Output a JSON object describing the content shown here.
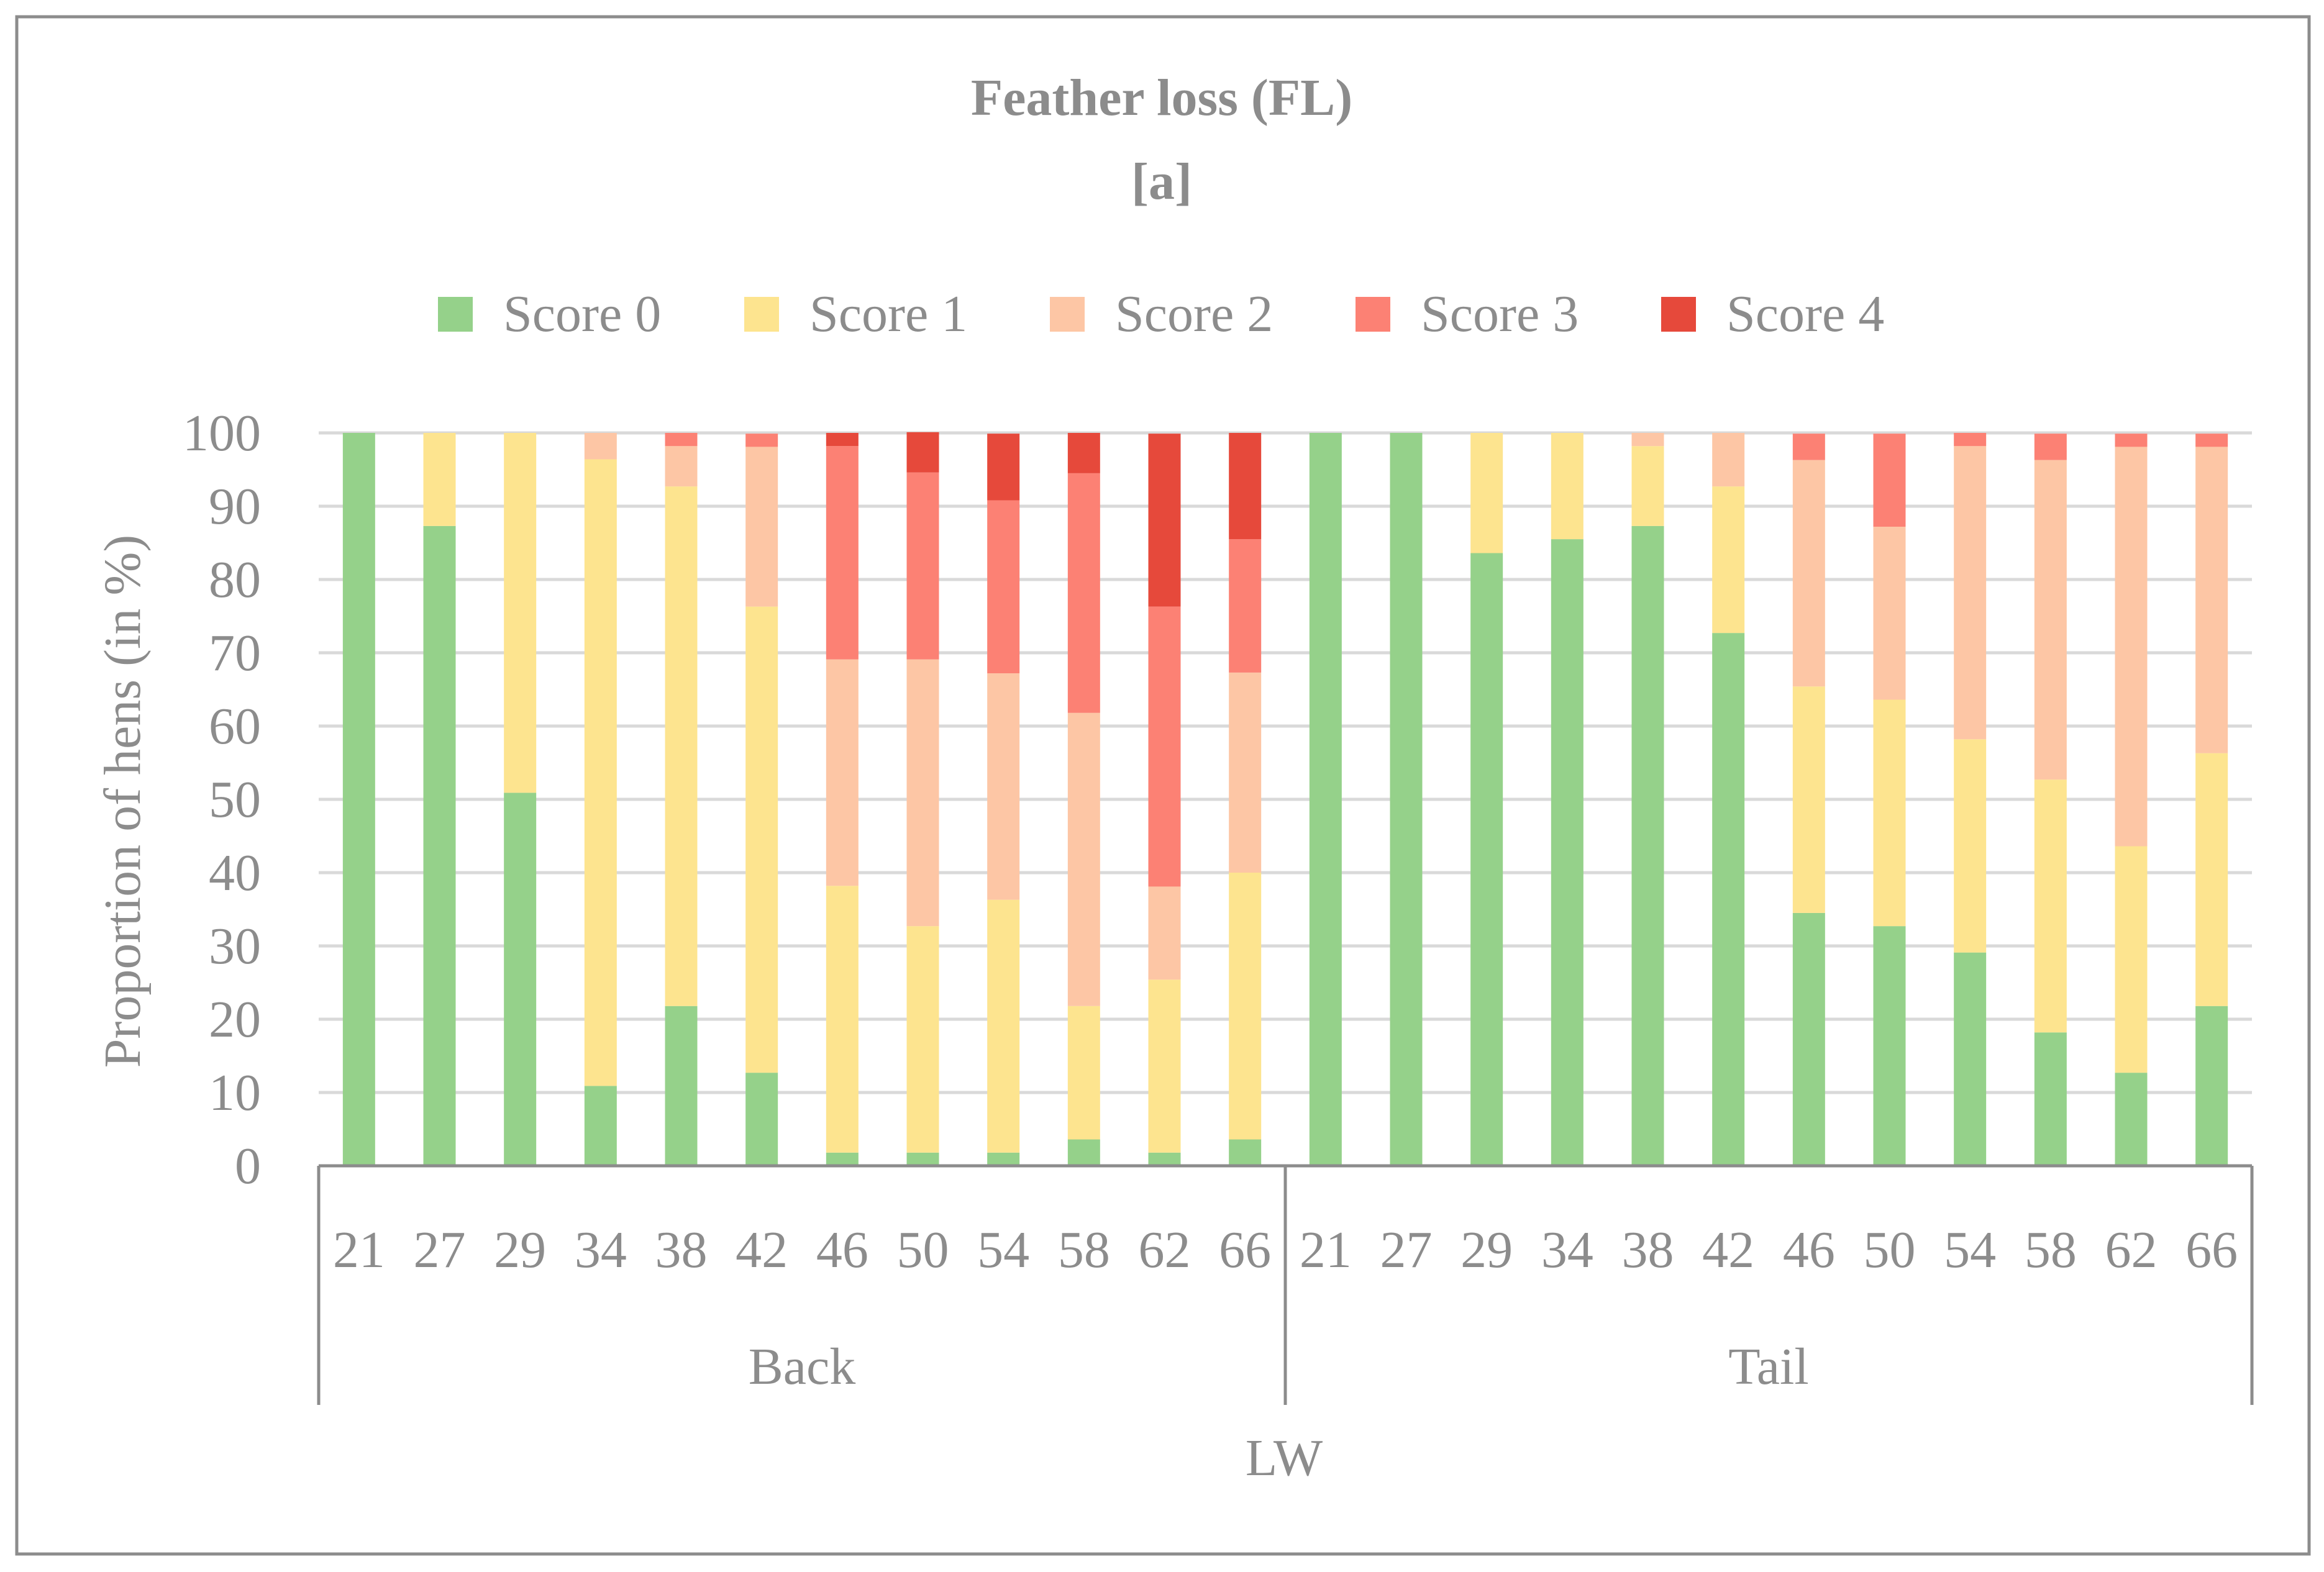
{
  "chart_data": {
    "type": "stacked-bar",
    "title": "Feather loss (FL)",
    "subtitle": "[a]",
    "ylabel": "Proportion of hens (in %)",
    "ylim": [
      0,
      100
    ],
    "yticks": [
      0,
      10,
      20,
      30,
      40,
      50,
      60,
      70,
      80,
      90,
      100
    ],
    "group_label": "LW",
    "groups": [
      {
        "name": "Back",
        "categories": [
          "21",
          "27",
          "29",
          "34",
          "38",
          "42",
          "46",
          "50",
          "54",
          "58",
          "62",
          "66"
        ]
      },
      {
        "name": "Tail",
        "categories": [
          "21",
          "27",
          "29",
          "34",
          "38",
          "42",
          "46",
          "50",
          "54",
          "58",
          "62",
          "66"
        ]
      }
    ],
    "legend_position": "top",
    "series": [
      {
        "name": "Score 0",
        "color": "#95d18a",
        "values": [
          100,
          87.3,
          50.9,
          10.9,
          21.8,
          12.7,
          1.8,
          1.8,
          1.8,
          3.6,
          1.8,
          3.6,
          100,
          100,
          83.6,
          85.5,
          87.3,
          72.7,
          34.5,
          32.7,
          29.1,
          18.2,
          12.7,
          21.8
        ]
      },
      {
        "name": "Score 1",
        "color": "#fde48f",
        "values": [
          0,
          12.7,
          49.1,
          85.5,
          70.9,
          63.6,
          36.4,
          30.9,
          34.5,
          18.2,
          23.6,
          36.4,
          0,
          0,
          16.4,
          14.5,
          10.9,
          20.0,
          30.9,
          30.9,
          29.1,
          34.5,
          30.9,
          34.5
        ]
      },
      {
        "name": "Score 2",
        "color": "#fdc6a5",
        "values": [
          0,
          0,
          0,
          3.6,
          5.5,
          21.8,
          30.9,
          36.4,
          30.9,
          40.0,
          12.7,
          27.3,
          0,
          0,
          0,
          0,
          1.8,
          7.3,
          30.9,
          23.6,
          40.0,
          43.6,
          54.5,
          41.8
        ]
      },
      {
        "name": "Score 3",
        "color": "#fc8174",
        "values": [
          0,
          0,
          0,
          0,
          1.8,
          1.8,
          29.1,
          25.5,
          23.6,
          32.7,
          38.2,
          18.2,
          0,
          0,
          0,
          0,
          0,
          0,
          3.6,
          12.7,
          1.8,
          3.6,
          1.8,
          1.8
        ]
      },
      {
        "name": "Score 4",
        "color": "#e6493b",
        "values": [
          0,
          0,
          0,
          0,
          0,
          0,
          1.8,
          5.5,
          9.1,
          5.5,
          23.6,
          14.5,
          0,
          0,
          0,
          0,
          0,
          0,
          0,
          0,
          0,
          0,
          0,
          0
        ]
      }
    ]
  }
}
